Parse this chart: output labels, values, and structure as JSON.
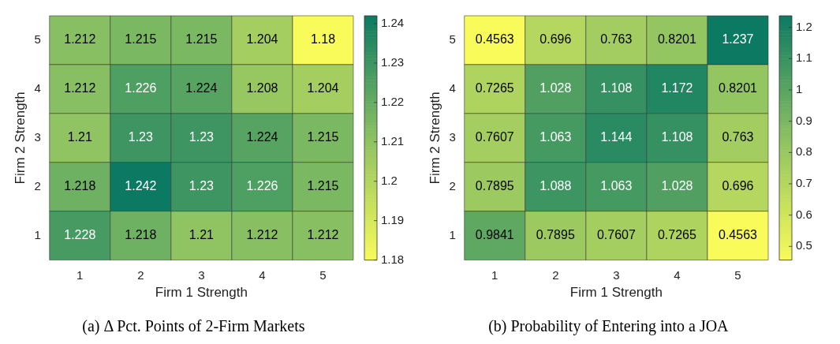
{
  "chart_data": [
    {
      "type": "heatmap",
      "title": "(a) Δ Pct. Points of 2-Firm Markets",
      "xlabel": "Firm 1 Strength",
      "ylabel": "Firm 2 Strength",
      "categories": [
        "1",
        "2",
        "3",
        "4",
        "5"
      ],
      "y_categories": [
        "5",
        "4",
        "3",
        "2",
        "1"
      ],
      "cells": [
        [
          1.212,
          1.215,
          1.215,
          1.204,
          1.18
        ],
        [
          1.212,
          1.226,
          1.224,
          1.208,
          1.204
        ],
        [
          1.21,
          1.23,
          1.23,
          1.224,
          1.215
        ],
        [
          1.218,
          1.242,
          1.23,
          1.226,
          1.215
        ],
        [
          1.228,
          1.218,
          1.21,
          1.212,
          1.212
        ]
      ],
      "clim": [
        1.18,
        1.242
      ],
      "cticks": [
        1.18,
        1.19,
        1.2,
        1.21,
        1.22,
        1.23,
        1.24
      ],
      "data_labels": true
    },
    {
      "type": "heatmap",
      "title": "(b) Probability of Entering into a JOA",
      "xlabel": "Firm 1 Strength",
      "ylabel": "Firm 2 Strength",
      "categories": [
        "1",
        "2",
        "3",
        "4",
        "5"
      ],
      "y_categories": [
        "5",
        "4",
        "3",
        "2",
        "1"
      ],
      "cells": [
        [
          0.4563,
          0.696,
          0.763,
          0.8201,
          1.237
        ],
        [
          0.7265,
          1.028,
          1.108,
          1.172,
          0.8201
        ],
        [
          0.7607,
          1.063,
          1.144,
          1.108,
          0.763
        ],
        [
          0.7895,
          1.088,
          1.063,
          1.028,
          0.696
        ],
        [
          0.9841,
          0.7895,
          0.7607,
          0.7265,
          0.4563
        ]
      ],
      "clim": [
        0.4563,
        1.237
      ],
      "cticks": [
        0.5,
        0.6,
        0.7,
        0.8,
        0.9,
        1,
        1.1,
        1.2
      ],
      "data_labels": true
    }
  ]
}
